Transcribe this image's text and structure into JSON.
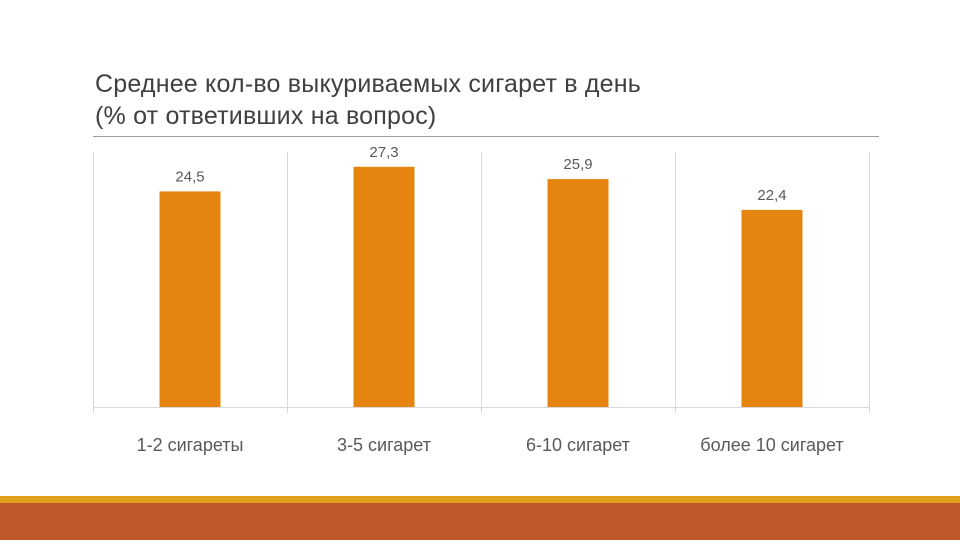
{
  "title": {
    "line1": "Среднее кол-во выкуриваемых сигарет в день",
    "line2": "(% от ответивших на вопрос)"
  },
  "colors": {
    "bar": "#e5850f",
    "grid": "#d9d9d9",
    "label": "#595959",
    "stripe_top": "#e0a019",
    "stripe_bottom": "#c0582a"
  },
  "chart_data": {
    "type": "bar",
    "categories": [
      "1-2 сигареты",
      "3-5 сигарет",
      "6-10 сигарет",
      "более 10 сигарет"
    ],
    "values": [
      24.5,
      27.3,
      25.9,
      22.4
    ],
    "value_labels": [
      "24,5",
      "27,3",
      "25,9",
      "22,4"
    ],
    "title": "Среднее кол-во выкуриваемых сигарет в день (% от ответивших на вопрос)",
    "xlabel": "",
    "ylabel": "",
    "ylim": [
      0,
      30
    ],
    "grid": false,
    "legend": "none"
  }
}
